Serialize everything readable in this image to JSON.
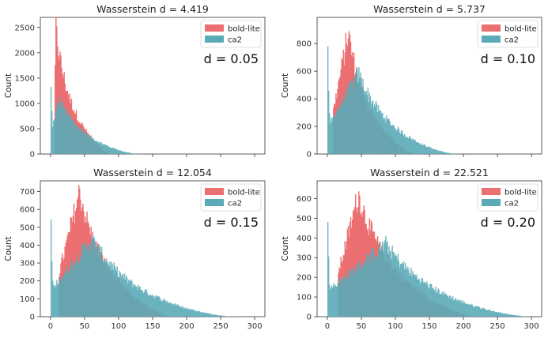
{
  "colors": {
    "series_a": "#ec6f71",
    "series_b": "#5aaab7",
    "overlap": "#6d9aa6"
  },
  "chart_data": [
    {
      "type": "histogram",
      "title": "Wasserstein d = 4.419",
      "annotation": "d = 0.05",
      "ylabel": "Count",
      "xlim": [
        -15,
        315
      ],
      "ylim": [
        0,
        2700
      ],
      "yticks": [
        0,
        500,
        1000,
        1500,
        2000,
        2500
      ],
      "xticks": [
        0,
        50,
        100,
        150,
        200,
        250,
        300
      ],
      "show_xtick_labels": false,
      "legend": "top-right",
      "series": [
        {
          "name": "bold-lite",
          "shape": {
            "start": 5,
            "peak_x": 7,
            "peak": 2500,
            "decay": 14,
            "tail_end": 90
          }
        },
        {
          "name": "ca2",
          "shape": {
            "start": 0,
            "spike": 1280,
            "peak_x": 12,
            "peak": 1080,
            "decay": 30,
            "tail_end": 130
          }
        }
      ]
    },
    {
      "type": "histogram",
      "title": "Wasserstein d = 5.737",
      "annotation": "d = 0.10",
      "ylabel": "Count",
      "xlim": [
        -15,
        315
      ],
      "ylim": [
        0,
        990
      ],
      "yticks": [
        0,
        200,
        400,
        600,
        800
      ],
      "xticks": [
        0,
        50,
        100,
        150,
        200,
        250,
        300
      ],
      "show_xtick_labels": false,
      "legend": "top-right",
      "series": [
        {
          "name": "bold-lite",
          "shape": {
            "start": 8,
            "peak_x": 30,
            "peak": 880,
            "decay": 22,
            "tail_end": 130
          }
        },
        {
          "name": "ca2",
          "shape": {
            "start": 0,
            "spike": 700,
            "peak_x": 45,
            "peak": 580,
            "decay": 40,
            "tail_end": 190
          }
        }
      ]
    },
    {
      "type": "histogram",
      "title": "Wasserstein d = 12.054",
      "annotation": "d = 0.15",
      "ylabel": "Count",
      "xlim": [
        -15,
        315
      ],
      "ylim": [
        0,
        760
      ],
      "yticks": [
        0,
        100,
        200,
        300,
        400,
        500,
        600,
        700
      ],
      "xticks": [
        0,
        50,
        100,
        150,
        200,
        250,
        300
      ],
      "show_xtick_labels": true,
      "legend": "top-right",
      "series": [
        {
          "name": "bold-lite",
          "shape": {
            "start": 12,
            "peak_x": 42,
            "peak": 700,
            "decay": 28,
            "tail_end": 180
          }
        },
        {
          "name": "ca2",
          "shape": {
            "start": 0,
            "spike": 490,
            "peak_x": 60,
            "peak": 430,
            "decay": 55,
            "tail_end": 270
          }
        }
      ]
    },
    {
      "type": "histogram",
      "title": "Wasserstein d = 22.521",
      "annotation": "d = 0.20",
      "ylabel": "Count",
      "xlim": [
        -15,
        315
      ],
      "ylim": [
        0,
        690
      ],
      "yticks": [
        0,
        100,
        200,
        300,
        400,
        500,
        600
      ],
      "xticks": [
        0,
        50,
        100,
        150,
        200,
        250,
        300
      ],
      "show_xtick_labels": true,
      "legend": "top-right",
      "series": [
        {
          "name": "bold-lite",
          "shape": {
            "start": 15,
            "peak_x": 45,
            "peak": 620,
            "decay": 38,
            "tail_end": 220
          }
        },
        {
          "name": "ca2",
          "shape": {
            "start": 0,
            "spike": 440,
            "peak_x": 85,
            "peak": 370,
            "decay": 65,
            "tail_end": 300
          }
        }
      ]
    }
  ]
}
